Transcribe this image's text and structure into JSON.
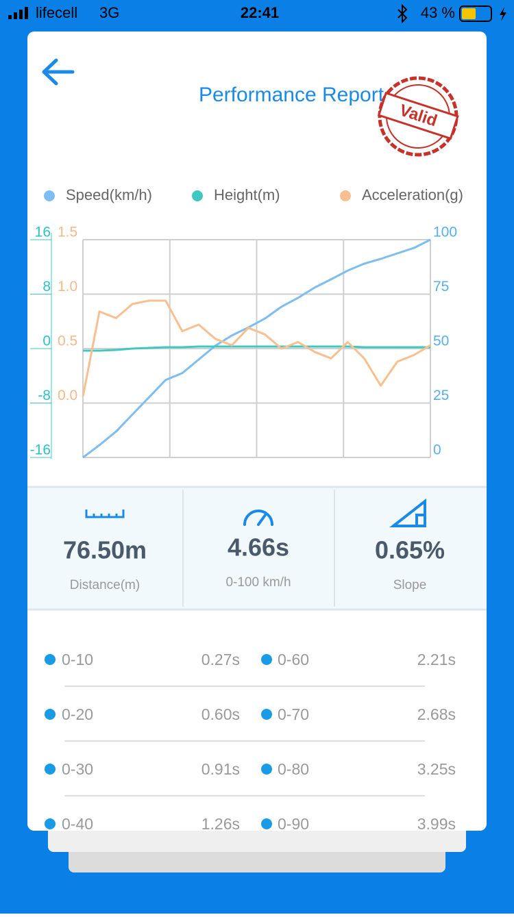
{
  "status_bar": {
    "carrier": "lifecell",
    "network": "3G",
    "time": "22:41",
    "battery": "43 %"
  },
  "header": {
    "title": "Performance Report",
    "stamp": "Valid"
  },
  "chart_data": {
    "type": "line",
    "series": [
      {
        "name": "Speed(km/h)",
        "color": "#7dbdf0",
        "axis": "y2",
        "values": [
          0,
          5.7,
          11.9,
          19.8,
          27.7,
          35.6,
          38.7,
          45,
          51.3,
          56,
          59.7,
          63.8,
          69.2,
          73.3,
          78,
          81.8,
          85.8,
          89,
          91.2,
          93.7,
          96.2,
          100
        ]
      },
      {
        "name": "Height(m)",
        "color": "#40c8c0",
        "axis": "y",
        "values": [
          -0.3,
          -0.3,
          -0.2,
          0,
          0.1,
          0.2,
          0.2,
          0.3,
          0.3,
          0.3,
          0.3,
          0.3,
          0.3,
          0.3,
          0.3,
          0.3,
          0.3,
          0.2,
          0.2,
          0.2,
          0.2,
          0.2
        ]
      },
      {
        "name": "Acceleration(g)",
        "color": "#f8c090",
        "axis": "y3",
        "values": [
          0.06,
          0.84,
          0.78,
          0.91,
          0.94,
          0.94,
          0.66,
          0.72,
          0.59,
          0.53,
          0.69,
          0.63,
          0.5,
          0.56,
          0.47,
          0.41,
          0.56,
          0.41,
          0.16,
          0.38,
          0.44,
          0.53
        ]
      }
    ],
    "ylim": [
      -16,
      16
    ],
    "yticks": [
      -16,
      -8,
      0,
      8,
      16
    ],
    "y3lim": [
      -0.5,
      1.5
    ],
    "y3ticks": [
      {
        "value": 0,
        "label": "0.0"
      },
      0.5,
      {
        "value": 1,
        "label": "1.0"
      },
      1.5
    ],
    "y2lim": [
      0,
      100
    ],
    "y2ticks": [
      0,
      25,
      50,
      75,
      100
    ],
    "grid": true
  },
  "stats": [
    {
      "value": "76.50m",
      "label": "Distance(m)"
    },
    {
      "value": "4.66s",
      "label": "0-100 km/h"
    },
    {
      "value": "0.65%",
      "label": "Slope"
    }
  ],
  "splits": [
    {
      "label": "0-10",
      "time": "0.27s"
    },
    {
      "label": "0-60",
      "time": "2.21s"
    },
    {
      "label": "0-20",
      "time": "0.60s"
    },
    {
      "label": "0-70",
      "time": "2.68s"
    },
    {
      "label": "0-30",
      "time": "0.91s"
    },
    {
      "label": "0-80",
      "time": "3.25s"
    },
    {
      "label": "0-40",
      "time": "1.26s"
    },
    {
      "label": "0-90",
      "time": "3.99s"
    }
  ]
}
